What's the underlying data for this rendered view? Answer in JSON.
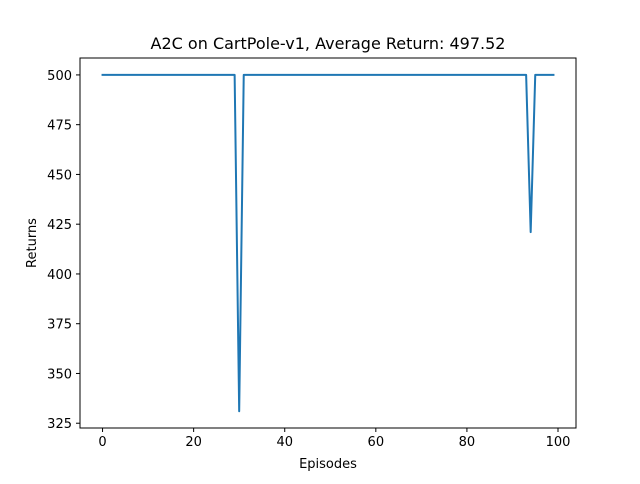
{
  "chart_data": {
    "type": "line",
    "title": "A2C on CartPole-v1, Average Return: 497.52",
    "xlabel": "Episodes",
    "ylabel": "Returns",
    "xlim": [
      -4.95,
      103.95
    ],
    "ylim": [
      322.6,
      508.5
    ],
    "xticks": [
      0,
      20,
      40,
      60,
      80,
      100
    ],
    "yticks": [
      325,
      350,
      375,
      400,
      425,
      450,
      475,
      500
    ],
    "grid": false,
    "legend": "none",
    "colors": {
      "line": "#1f77b4",
      "axes": "#000000",
      "background": "#ffffff"
    },
    "series": [
      {
        "x": [
          0,
          1,
          2,
          3,
          4,
          5,
          6,
          7,
          8,
          9,
          10,
          11,
          12,
          13,
          14,
          15,
          16,
          17,
          18,
          19,
          20,
          21,
          22,
          23,
          24,
          25,
          26,
          27,
          28,
          29,
          30,
          31,
          32,
          33,
          34,
          35,
          36,
          37,
          38,
          39,
          40,
          41,
          42,
          43,
          44,
          45,
          46,
          47,
          48,
          49,
          50,
          51,
          52,
          53,
          54,
          55,
          56,
          57,
          58,
          59,
          60,
          61,
          62,
          63,
          64,
          65,
          66,
          67,
          68,
          69,
          70,
          71,
          72,
          73,
          74,
          75,
          76,
          77,
          78,
          79,
          80,
          81,
          82,
          83,
          84,
          85,
          86,
          87,
          88,
          89,
          90,
          91,
          92,
          93,
          94,
          95,
          96,
          97,
          98,
          99
        ],
        "values": [
          500,
          500,
          500,
          500,
          500,
          500,
          500,
          500,
          500,
          500,
          500,
          500,
          500,
          500,
          500,
          500,
          500,
          500,
          500,
          500,
          500,
          500,
          500,
          500,
          500,
          500,
          500,
          500,
          500,
          500,
          331,
          500,
          500,
          500,
          500,
          500,
          500,
          500,
          500,
          500,
          500,
          500,
          500,
          500,
          500,
          500,
          500,
          500,
          500,
          500,
          500,
          500,
          500,
          500,
          500,
          500,
          500,
          500,
          500,
          500,
          500,
          500,
          500,
          500,
          500,
          500,
          500,
          500,
          500,
          500,
          500,
          500,
          500,
          500,
          500,
          500,
          500,
          500,
          500,
          500,
          500,
          500,
          500,
          500,
          500,
          500,
          500,
          500,
          500,
          500,
          500,
          500,
          500,
          500,
          421,
          500,
          500,
          500,
          500,
          500
        ]
      }
    ]
  }
}
